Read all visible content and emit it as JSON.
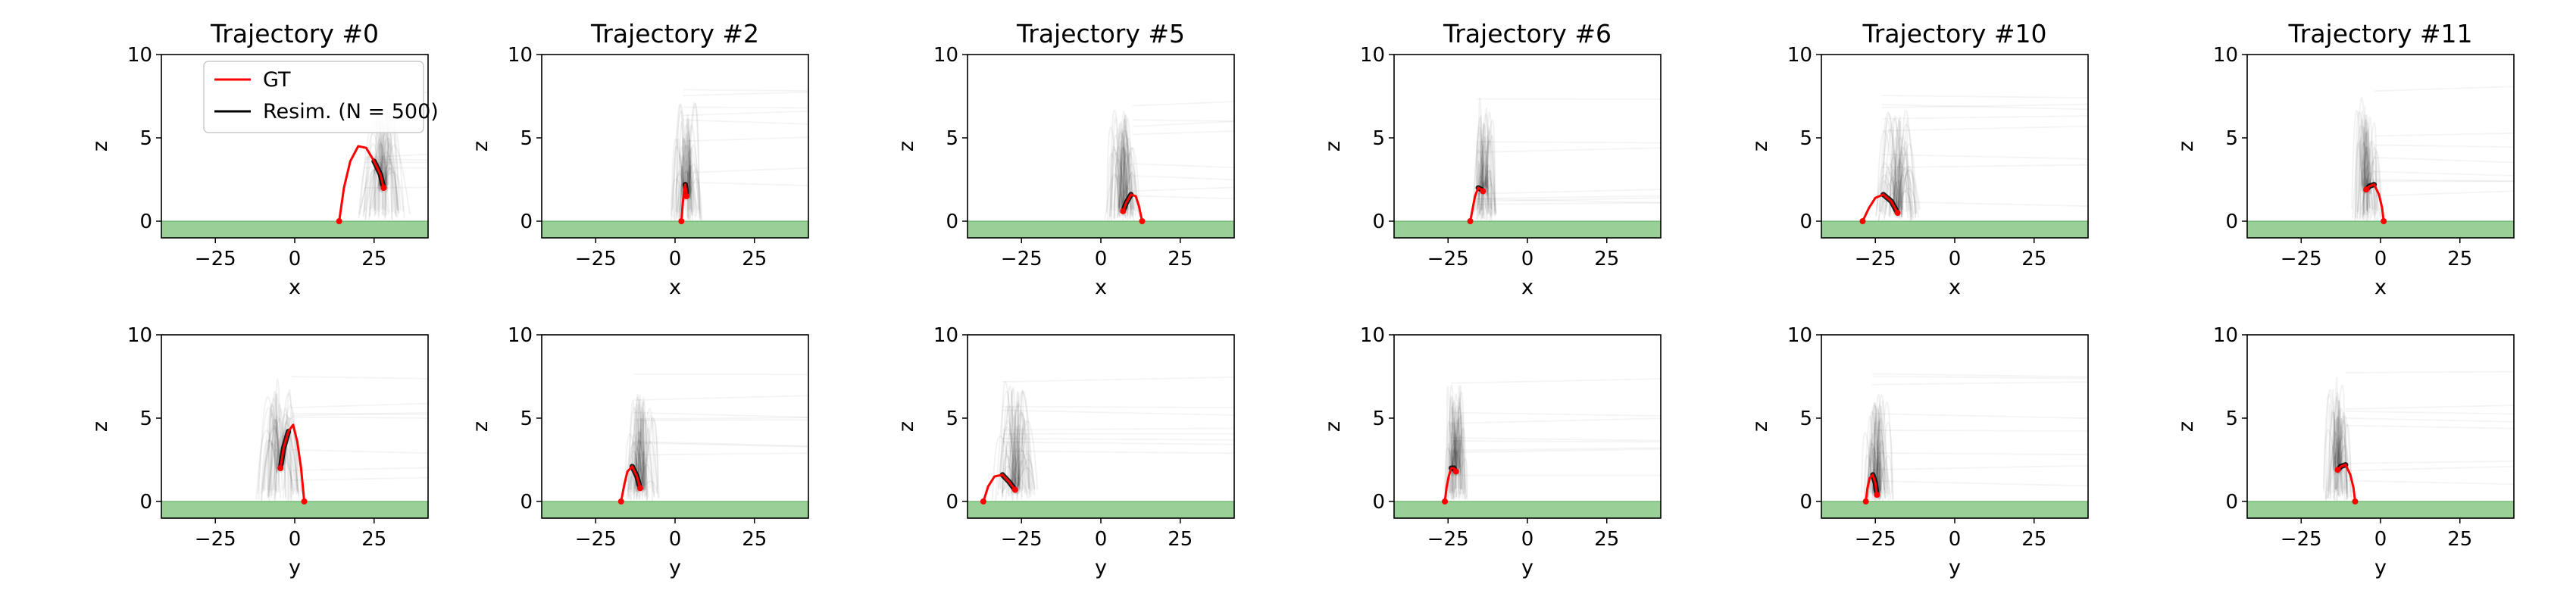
{
  "chart_data": {
    "type": "line",
    "legend": {
      "placement": "top-left of first panel",
      "entries": [
        {
          "label": "GT",
          "color": "#ff0000"
        },
        {
          "label": "Resim. (N = 500)",
          "color": "#000000"
        }
      ]
    },
    "colors": {
      "gt": "#ff0000",
      "resim": "#000000",
      "ground": "#98d098",
      "ground_edge": "#55a955"
    },
    "ground_level": 0,
    "ground_bottom": -1,
    "xlim": [
      -42,
      42
    ],
    "ylim": [
      -1,
      10
    ],
    "xticks": [
      -25,
      0,
      25
    ],
    "yticks": [
      0,
      5,
      10
    ],
    "ylabel": "z",
    "rows": [
      {
        "xlabel": "x"
      },
      {
        "xlabel": "y"
      }
    ],
    "panels": [
      {
        "title": "Trajectory #0",
        "top": {
          "gt": [
            [
              14,
              0
            ],
            [
              15.5,
              2
            ],
            [
              17.5,
              3.6
            ],
            [
              20,
              4.5
            ],
            [
              22.5,
              4.4
            ],
            [
              25,
              3.6
            ],
            [
              27,
              2.8
            ],
            [
              28,
              2
            ]
          ],
          "cx": 22,
          "spread": 9
        },
        "bottom": {
          "gt": [
            [
              3,
              0
            ],
            [
              2,
              2
            ],
            [
              0.8,
              3.6
            ],
            [
              -0.5,
              4.6
            ],
            [
              -2,
              4.2
            ],
            [
              -3.5,
              3.2
            ],
            [
              -4.5,
              2
            ]
          ],
          "cx": -1,
          "spread": 8
        }
      },
      {
        "title": "Trajectory #2",
        "top": {
          "gt": [
            [
              2,
              0
            ],
            [
              2.4,
              1
            ],
            [
              2.8,
              1.8
            ],
            [
              3.2,
              2.2
            ],
            [
              3.5,
              1.8
            ],
            [
              3.6,
              1.5
            ]
          ],
          "cx": 2.5,
          "spread": 5
        },
        "bottom": {
          "gt": [
            [
              -17,
              0
            ],
            [
              -16,
              1
            ],
            [
              -15,
              1.8
            ],
            [
              -13.5,
              2.1
            ],
            [
              -12,
              1.5
            ],
            [
              -11,
              0.8
            ]
          ],
          "cx": -13,
          "spread": 6
        }
      },
      {
        "title": "Trajectory #5",
        "top": {
          "gt": [
            [
              13,
              0
            ],
            [
              12,
              0.9
            ],
            [
              11,
              1.5
            ],
            [
              9.5,
              1.6
            ],
            [
              8,
              1.1
            ],
            [
              7,
              0.6
            ]
          ],
          "cx": 10,
          "spread": 6
        },
        "bottom": {
          "gt": [
            [
              -37,
              0
            ],
            [
              -35.5,
              0.9
            ],
            [
              -33.5,
              1.5
            ],
            [
              -31,
              1.6
            ],
            [
              -29,
              1.2
            ],
            [
              -27,
              0.7
            ]
          ],
          "cx": -31,
          "spread": 8
        }
      },
      {
        "title": "Trajectory #6",
        "top": {
          "gt": [
            [
              -18,
              0
            ],
            [
              -17.2,
              0.8
            ],
            [
              -16.5,
              1.5
            ],
            [
              -15.5,
              2
            ],
            [
              -14.5,
              1.9
            ],
            [
              -14,
              1.8
            ]
          ],
          "cx": -16,
          "spread": 4
        },
        "bottom": {
          "gt": [
            [
              -26,
              0
            ],
            [
              -25.5,
              0.8
            ],
            [
              -24.8,
              1.5
            ],
            [
              -24,
              2
            ],
            [
              -23.2,
              2
            ],
            [
              -22.5,
              1.8
            ]
          ],
          "cx": -24,
          "spread": 4
        }
      },
      {
        "title": "Trajectory #10",
        "top": {
          "gt": [
            [
              -29,
              0
            ],
            [
              -27,
              0.8
            ],
            [
              -25,
              1.4
            ],
            [
              -22.5,
              1.6
            ],
            [
              -20,
              1.2
            ],
            [
              -18,
              0.5
            ]
          ],
          "cx": -23,
          "spread": 8
        },
        "bottom": {
          "gt": [
            [
              -28,
              0
            ],
            [
              -27.5,
              0.8
            ],
            [
              -26.8,
              1.4
            ],
            [
              -25.8,
              1.6
            ],
            [
              -25,
              1.1
            ],
            [
              -24.5,
              0.4
            ]
          ],
          "cx": -26,
          "spread": 5
        }
      },
      {
        "title": "Trajectory #11",
        "top": {
          "gt": [
            [
              1,
              0
            ],
            [
              0.5,
              0.8
            ],
            [
              -0.5,
              1.6
            ],
            [
              -2,
              2.2
            ],
            [
              -3.5,
              2.1
            ],
            [
              -4.5,
              1.9
            ]
          ],
          "cx": -2,
          "spread": 5
        },
        "bottom": {
          "gt": [
            [
              -8,
              0
            ],
            [
              -8.5,
              0.8
            ],
            [
              -9.5,
              1.6
            ],
            [
              -11,
              2.2
            ],
            [
              -12.5,
              2.1
            ],
            [
              -13.5,
              1.9
            ]
          ],
          "cx": -11,
          "spread": 5
        }
      }
    ]
  }
}
